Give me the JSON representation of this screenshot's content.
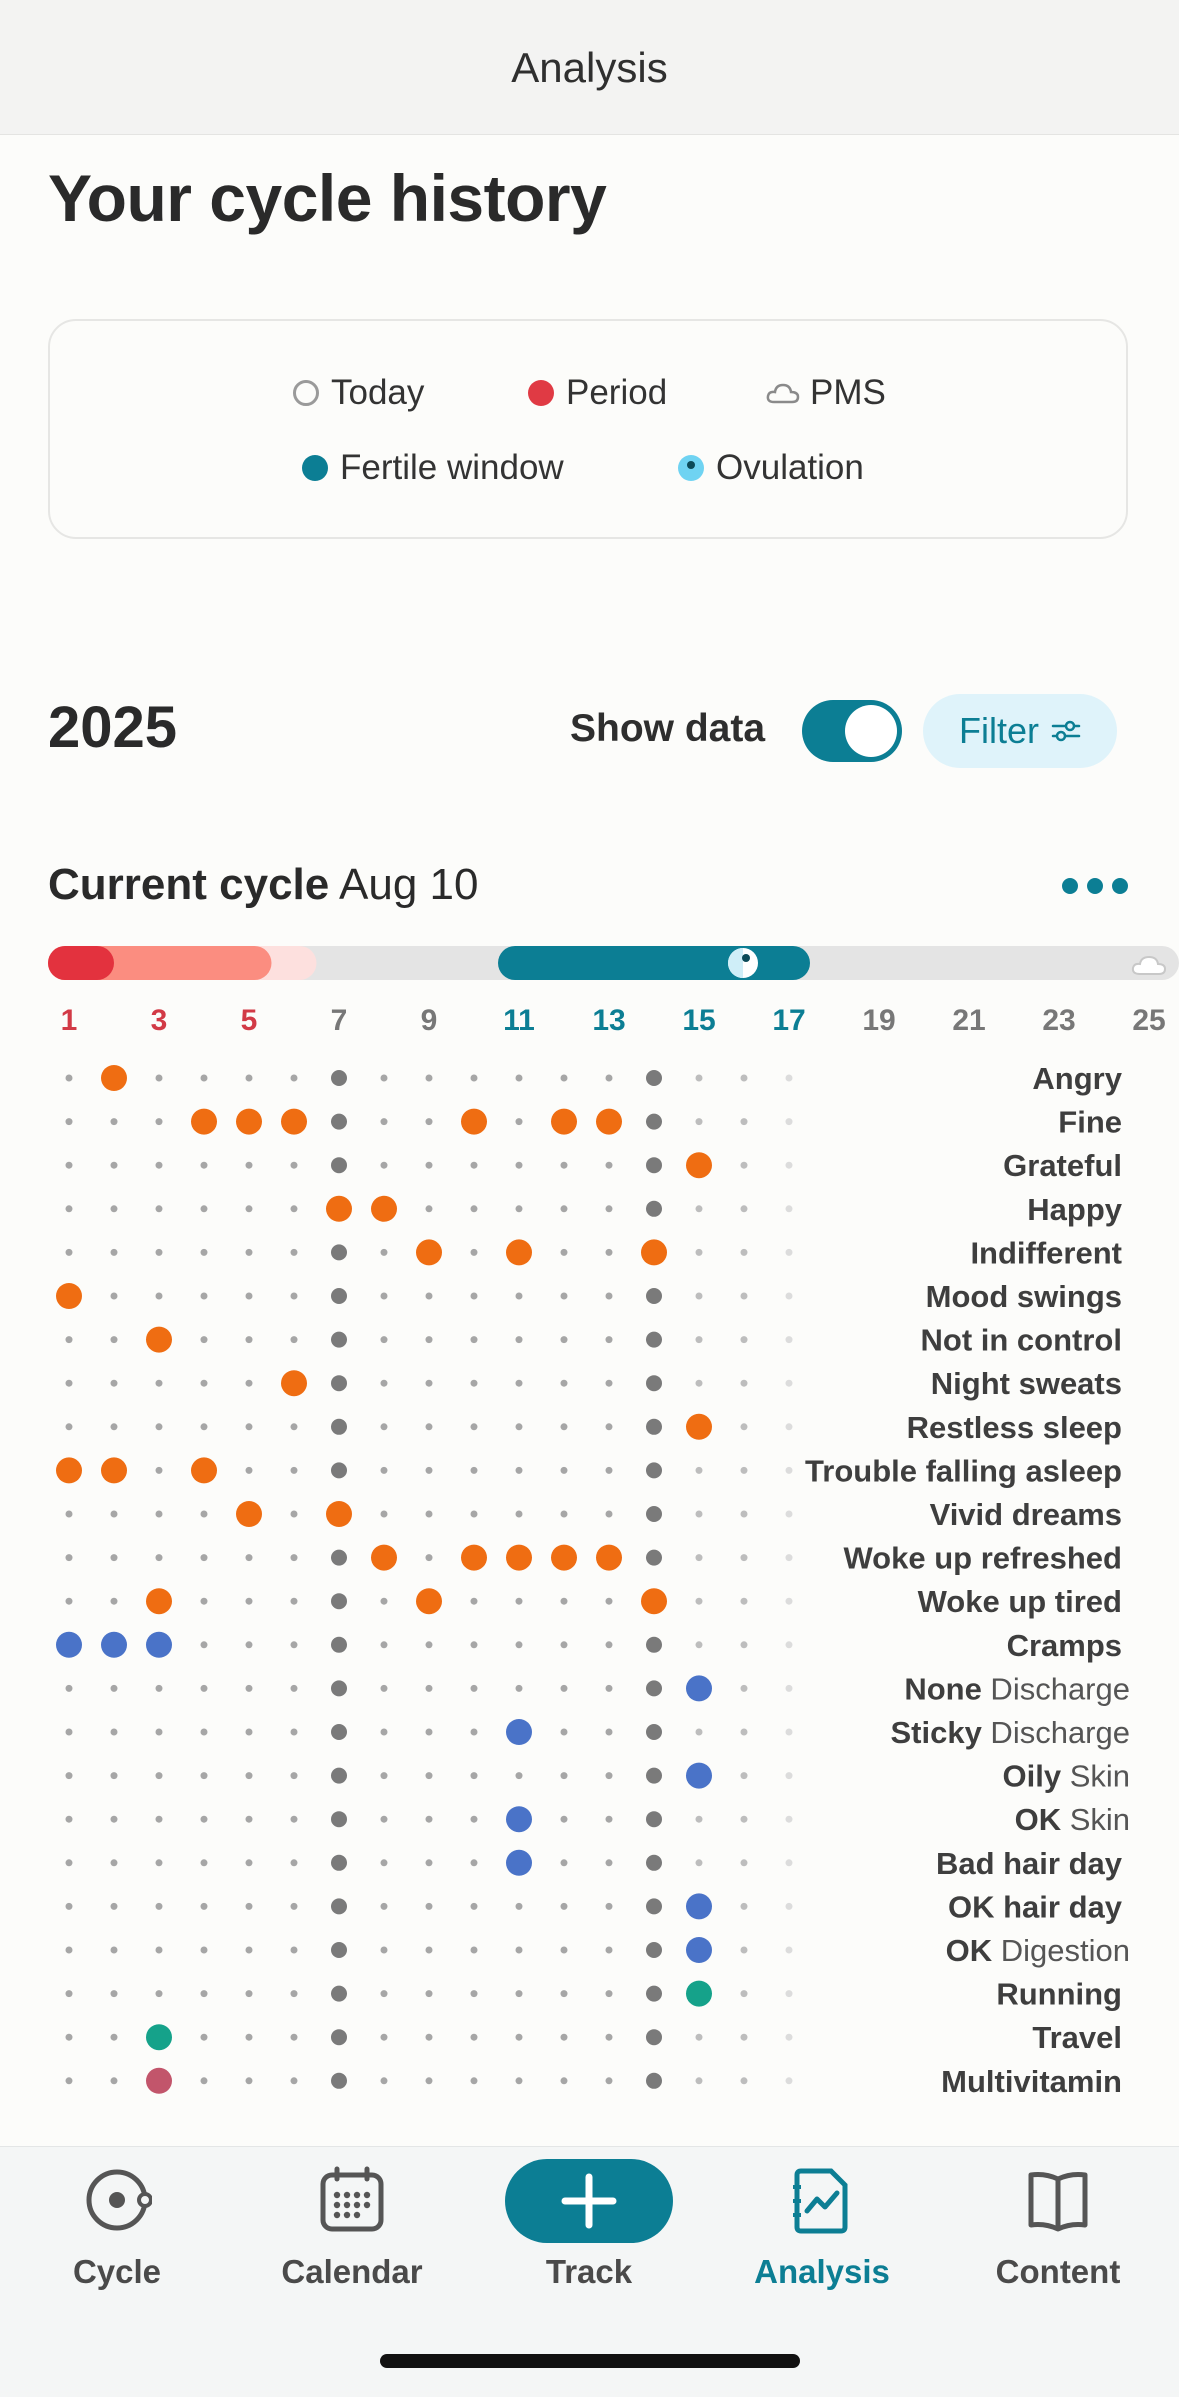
{
  "header": {
    "title": "Analysis"
  },
  "page_title": "Your cycle history",
  "legend": [
    {
      "label": "Today",
      "icon": "today-ring-icon"
    },
    {
      "label": "Period",
      "icon": "period-dot-icon",
      "color": "#e03a44"
    },
    {
      "label": "PMS",
      "icon": "cloud-icon"
    },
    {
      "label": "Fertile window",
      "icon": "fertile-dot-icon",
      "color": "#0c7e94"
    },
    {
      "label": "Ovulation",
      "icon": "ovulation-dot-icon",
      "color": "#6fd3f2"
    }
  ],
  "year": "2025",
  "show_data": {
    "label": "Show data",
    "on": true
  },
  "filter": {
    "label": "Filter",
    "icon": "sliders-icon"
  },
  "cycle": {
    "label_bold": "Current cycle",
    "date": "Aug 10",
    "more_icon": "more-dots-icon",
    "day_ticks": [
      {
        "label": "1",
        "color": "#d23a46"
      },
      {
        "label": "3",
        "color": "#d23a46"
      },
      {
        "label": "5",
        "color": "#d23a46"
      },
      {
        "label": "7",
        "color": "#777777"
      },
      {
        "label": "9",
        "color": "#777777"
      },
      {
        "label": "11",
        "color": "#0c7e94"
      },
      {
        "label": "13",
        "color": "#0c7e94"
      },
      {
        "label": "15",
        "color": "#0c7e94"
      },
      {
        "label": "17",
        "color": "#0c7e94"
      },
      {
        "label": "19",
        "color": "#777777"
      },
      {
        "label": "21",
        "color": "#777777"
      },
      {
        "label": "23",
        "color": "#777777"
      },
      {
        "label": "25",
        "color": "#777777"
      }
    ],
    "today_day": 7,
    "period_days": [
      1,
      6
    ],
    "fertile_days": [
      11,
      17
    ],
    "ovulation_day": 16,
    "pms_icon": "cloud-icon"
  },
  "chart_data": {
    "type": "table",
    "x_label": "cycle day",
    "colors": {
      "emotion": "#ef6d12",
      "body": "#4a73c8",
      "activity": "#15a28a",
      "supplement": "#c2556b"
    },
    "rows": [
      {
        "bold": "Angry",
        "light": "",
        "days": [
          2
        ],
        "kind": "emotion"
      },
      {
        "bold": "Fine",
        "light": "",
        "days": [
          4,
          5,
          6,
          10,
          12,
          13
        ],
        "kind": "emotion"
      },
      {
        "bold": "Grateful",
        "light": "",
        "days": [
          15
        ],
        "kind": "emotion"
      },
      {
        "bold": "Happy",
        "light": "",
        "days": [
          7,
          8
        ],
        "kind": "emotion"
      },
      {
        "bold": "Indifferent",
        "light": "",
        "days": [
          9,
          11,
          14
        ],
        "kind": "emotion"
      },
      {
        "bold": "Mood swings",
        "light": "",
        "days": [
          1
        ],
        "kind": "emotion"
      },
      {
        "bold": "Not in control",
        "light": "",
        "days": [
          3
        ],
        "kind": "emotion"
      },
      {
        "bold": "Night sweats",
        "light": "",
        "days": [
          6
        ],
        "kind": "emotion"
      },
      {
        "bold": "Restless sleep",
        "light": "",
        "days": [
          15
        ],
        "kind": "emotion"
      },
      {
        "bold": "Trouble falling asleep",
        "light": "",
        "days": [
          1,
          2,
          4
        ],
        "kind": "emotion"
      },
      {
        "bold": "Vivid dreams",
        "light": "",
        "days": [
          5,
          7
        ],
        "kind": "emotion"
      },
      {
        "bold": "Woke up refreshed",
        "light": "",
        "days": [
          8,
          10,
          11,
          12,
          13
        ],
        "kind": "emotion"
      },
      {
        "bold": "Woke up tired",
        "light": "",
        "days": [
          3,
          9,
          14
        ],
        "kind": "emotion"
      },
      {
        "bold": "Cramps",
        "light": "",
        "days": [
          1,
          2,
          3
        ],
        "kind": "body"
      },
      {
        "bold": "None",
        "light": " Discharge",
        "days": [
          15
        ],
        "kind": "body"
      },
      {
        "bold": "Sticky",
        "light": " Discharge",
        "days": [
          11
        ],
        "kind": "body"
      },
      {
        "bold": "Oily",
        "light": " Skin",
        "days": [
          15
        ],
        "kind": "body"
      },
      {
        "bold": "OK",
        "light": " Skin",
        "days": [
          11
        ],
        "kind": "body"
      },
      {
        "bold": "Bad hair day",
        "light": "",
        "days": [
          11
        ],
        "kind": "body"
      },
      {
        "bold": "OK hair day",
        "light": "",
        "days": [
          15
        ],
        "kind": "body"
      },
      {
        "bold": "OK",
        "light": " Digestion",
        "days": [
          15
        ],
        "kind": "body"
      },
      {
        "bold": "Running",
        "light": "",
        "days": [
          15
        ],
        "kind": "activity"
      },
      {
        "bold": "Travel",
        "light": "",
        "days": [
          3
        ],
        "kind": "activity"
      },
      {
        "bold": "Multivitamin",
        "light": "",
        "days": [
          3
        ],
        "kind": "supplement"
      }
    ]
  },
  "nav": [
    {
      "label": "Cycle",
      "icon": "cycle-icon",
      "active": false
    },
    {
      "label": "Calendar",
      "icon": "calendar-icon",
      "active": false
    },
    {
      "label": "Track",
      "icon": "plus-icon",
      "active": false
    },
    {
      "label": "Analysis",
      "icon": "analysis-icon",
      "active": true
    },
    {
      "label": "Content",
      "icon": "book-icon",
      "active": false
    }
  ]
}
